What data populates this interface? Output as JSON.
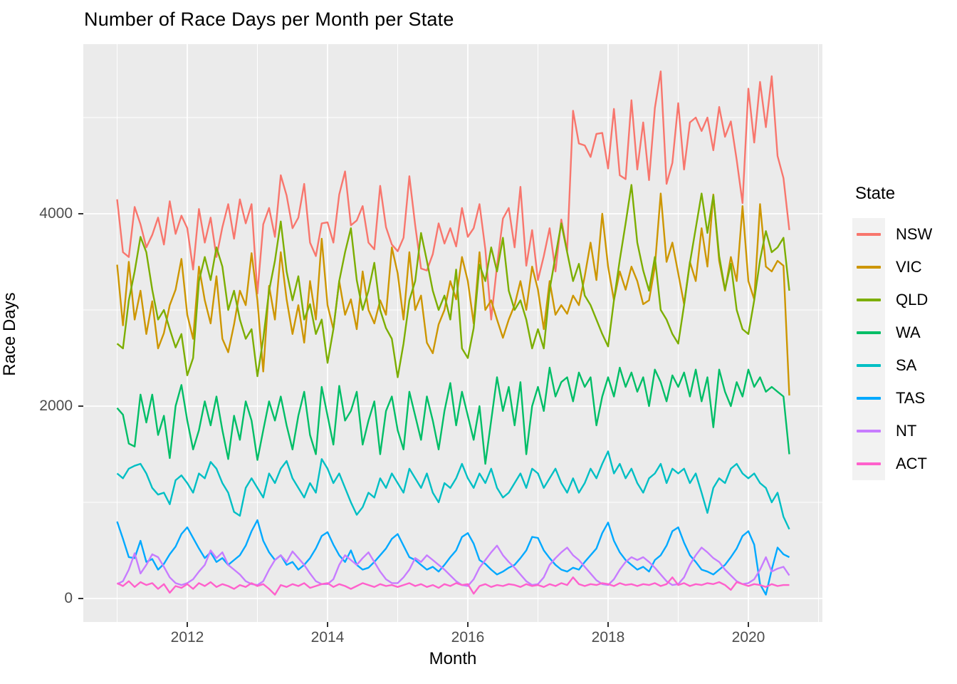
{
  "title": "Number of Race Days per Month per State",
  "colors": {
    "panel_bg": "#EBEBEB",
    "grid": "#FFFFFF",
    "legend_key_bg": "#F2F2F2",
    "tick_text": "#4D4D4D",
    "tick_mark": "#333333"
  },
  "legend": {
    "title": "State",
    "items": [
      {
        "label": "NSW",
        "color": "#F8766D"
      },
      {
        "label": "VIC",
        "color": "#CD9600"
      },
      {
        "label": "QLD",
        "color": "#7CAE00"
      },
      {
        "label": "WA",
        "color": "#00BE67"
      },
      {
        "label": "SA",
        "color": "#00BFC4"
      },
      {
        "label": "TAS",
        "color": "#00A9FF"
      },
      {
        "label": "NT",
        "color": "#C77CFF"
      },
      {
        "label": "ACT",
        "color": "#FF61CC"
      }
    ]
  },
  "chart_data": {
    "type": "line",
    "title": "Number of Race Days per Month per State",
    "xlabel": "Month",
    "ylabel": "Race Days",
    "x_start_year": 2011.0,
    "x_step_years": 0.0833333,
    "n_points": 116,
    "x_end_label": "Aug 2020",
    "ylim": [
      0,
      5480
    ],
    "x_major_ticks": [
      {
        "value": 2012,
        "label": "2012"
      },
      {
        "value": 2014,
        "label": "2014"
      },
      {
        "value": 2016,
        "label": "2016"
      },
      {
        "value": 2018,
        "label": "2018"
      },
      {
        "value": 2020,
        "label": "2020"
      }
    ],
    "x_minor_ticks": [
      2011,
      2013,
      2015,
      2017,
      2019,
      2021
    ],
    "y_major_ticks": [
      {
        "value": 0,
        "label": "0"
      },
      {
        "value": 2000,
        "label": "2000"
      },
      {
        "value": 4000,
        "label": "4000"
      }
    ],
    "y_minor_ticks": [
      1000,
      3000,
      5000
    ],
    "grid": true,
    "legend_position": "right",
    "series": [
      {
        "name": "NSW",
        "color": "#F8766D",
        "values": [
          4150,
          3600,
          3550,
          4070,
          3890,
          3650,
          3780,
          3960,
          3680,
          4130,
          3790,
          3980,
          3850,
          3420,
          4050,
          3700,
          3960,
          3550,
          3860,
          4100,
          3740,
          4150,
          3900,
          4100,
          3170,
          3890,
          4060,
          3760,
          4400,
          4190,
          3850,
          3960,
          4310,
          3700,
          3560,
          3900,
          3910,
          3700,
          4200,
          4440,
          3880,
          3930,
          4080,
          3700,
          3630,
          4290,
          3860,
          3680,
          3610,
          3750,
          4390,
          3880,
          3430,
          3410,
          3580,
          3900,
          3690,
          3850,
          3660,
          4060,
          3760,
          3850,
          4100,
          3630,
          2900,
          3460,
          3950,
          4060,
          3650,
          4280,
          3460,
          3830,
          3310,
          3560,
          3850,
          3400,
          3940,
          3610,
          5070,
          4730,
          4710,
          4590,
          4830,
          4840,
          4470,
          5090,
          4400,
          4360,
          5180,
          4460,
          4950,
          4350,
          5100,
          5480,
          4310,
          4530,
          5150,
          4460,
          4950,
          5000,
          4860,
          5000,
          4660,
          5110,
          4800,
          4960,
          4560,
          4110,
          5300,
          4740,
          5370,
          4900,
          5430,
          4600,
          4370,
          3830
        ]
      },
      {
        "name": "VIC",
        "color": "#CD9600",
        "values": [
          3470,
          2840,
          3500,
          2900,
          3200,
          2750,
          3090,
          2600,
          2760,
          3050,
          3210,
          3530,
          2950,
          2700,
          3450,
          3100,
          2860,
          3350,
          2700,
          2560,
          2850,
          3200,
          3050,
          3590,
          3100,
          2360,
          3250,
          2900,
          3600,
          3110,
          2750,
          3050,
          2660,
          3300,
          2900,
          3740,
          3050,
          2800,
          3300,
          2950,
          3110,
          2800,
          3400,
          3000,
          2860,
          3100,
          2950,
          3650,
          3380,
          2900,
          3600,
          3000,
          3150,
          2660,
          2550,
          2850,
          3000,
          3300,
          3110,
          3550,
          3300,
          2860,
          3600,
          3000,
          3100,
          2900,
          2710,
          2900,
          3050,
          3300,
          3000,
          3450,
          3210,
          2800,
          3300,
          2950,
          3050,
          2960,
          3150,
          3050,
          3350,
          3700,
          3310,
          4000,
          3450,
          3100,
          3400,
          3210,
          3450,
          3300,
          3060,
          3100,
          3450,
          4210,
          3500,
          3700,
          3380,
          3060,
          3500,
          3300,
          3850,
          3450,
          4200,
          3510,
          3200,
          3550,
          3300,
          4080,
          3300,
          3110,
          4100,
          3450,
          3400,
          3510,
          3460,
          2110
        ]
      },
      {
        "name": "QLD",
        "color": "#7CAE00",
        "values": [
          2650,
          2600,
          3100,
          3400,
          3760,
          3600,
          3210,
          2900,
          3000,
          2800,
          2610,
          2750,
          2320,
          2500,
          3300,
          3550,
          3310,
          3650,
          3450,
          3000,
          3200,
          2900,
          2700,
          2800,
          2310,
          2700,
          3200,
          3510,
          3920,
          3400,
          3100,
          3350,
          2900,
          3060,
          2750,
          2900,
          2450,
          2800,
          3300,
          3600,
          3850,
          3310,
          3000,
          3200,
          3490,
          3000,
          2810,
          2700,
          2300,
          2650,
          3100,
          3300,
          3800,
          3510,
          3200,
          3000,
          3150,
          2900,
          3420,
          2600,
          2500,
          2810,
          3470,
          3300,
          3650,
          3400,
          3750,
          3200,
          3000,
          3100,
          2900,
          2600,
          2800,
          2600,
          3210,
          3560,
          3900,
          3600,
          3300,
          3480,
          3150,
          3050,
          2900,
          2750,
          2620,
          3100,
          3520,
          3900,
          4300,
          3700,
          3410,
          3200,
          3550,
          3000,
          2900,
          2750,
          2650,
          3050,
          3490,
          3850,
          4210,
          3800,
          4190,
          3560,
          3210,
          3480,
          3000,
          2800,
          2750,
          3100,
          3520,
          3820,
          3600,
          3650,
          3750,
          3200
        ]
      },
      {
        "name": "WA",
        "color": "#00BE67",
        "values": [
          1980,
          1910,
          1610,
          1580,
          2120,
          1830,
          2120,
          1700,
          1900,
          1460,
          2000,
          2220,
          1850,
          1550,
          1750,
          2050,
          1800,
          2100,
          1750,
          1450,
          1900,
          1650,
          2050,
          1850,
          1440,
          1750,
          2050,
          1850,
          2100,
          1800,
          1550,
          1900,
          2150,
          1700,
          1500,
          2200,
          1900,
          1600,
          2210,
          1850,
          1950,
          2150,
          1600,
          1850,
          2050,
          1500,
          1950,
          2100,
          1750,
          1550,
          2150,
          1900,
          1650,
          2100,
          1850,
          1550,
          1950,
          2240,
          1800,
          2150,
          1900,
          1650,
          2000,
          1400,
          1850,
          2300,
          1950,
          2200,
          1800,
          2250,
          1500,
          2000,
          2200,
          1950,
          2400,
          2100,
          2250,
          2300,
          2050,
          2350,
          2200,
          2300,
          1800,
          2100,
          2300,
          2100,
          2400,
          2200,
          2350,
          2150,
          2300,
          2000,
          2380,
          2250,
          2050,
          2320,
          2200,
          2350,
          2100,
          2380,
          2050,
          2300,
          1780,
          2380,
          2150,
          2000,
          2250,
          2100,
          2380,
          2200,
          2300,
          2150,
          2200,
          2150,
          2100,
          1500
        ]
      },
      {
        "name": "SA",
        "color": "#00BFC4",
        "values": [
          1300,
          1250,
          1350,
          1380,
          1400,
          1300,
          1150,
          1080,
          1100,
          980,
          1230,
          1280,
          1200,
          1100,
          1300,
          1250,
          1420,
          1350,
          1200,
          1100,
          900,
          860,
          1150,
          1250,
          1150,
          1050,
          1300,
          1200,
          1350,
          1430,
          1250,
          1150,
          1050,
          1200,
          1100,
          1450,
          1350,
          1200,
          1300,
          1150,
          1000,
          870,
          950,
          1100,
          1050,
          1250,
          1150,
          1300,
          1200,
          1100,
          1350,
          1250,
          1150,
          1300,
          1100,
          1000,
          1200,
          1150,
          1250,
          1400,
          1250,
          1150,
          1300,
          1200,
          1350,
          1150,
          1050,
          1100,
          1200,
          1300,
          1150,
          1350,
          1300,
          1150,
          1250,
          1350,
          1200,
          1100,
          1250,
          1100,
          1200,
          1350,
          1250,
          1400,
          1530,
          1300,
          1400,
          1250,
          1350,
          1200,
          1100,
          1250,
          1300,
          1400,
          1200,
          1350,
          1300,
          1350,
          1200,
          1300,
          1100,
          890,
          1150,
          1250,
          1200,
          1350,
          1400,
          1300,
          1250,
          1300,
          1200,
          1150,
          1000,
          1100,
          850,
          720
        ]
      },
      {
        "name": "TAS",
        "color": "#00A9FF",
        "values": [
          800,
          620,
          430,
          420,
          600,
          380,
          410,
          300,
          360,
          460,
          540,
          670,
          740,
          630,
          520,
          420,
          480,
          380,
          420,
          350,
          400,
          450,
          550,
          700,
          815,
          600,
          480,
          400,
          450,
          350,
          380,
          300,
          350,
          420,
          520,
          650,
          690,
          560,
          450,
          380,
          500,
          350,
          300,
          320,
          380,
          450,
          520,
          620,
          670,
          550,
          430,
          400,
          350,
          300,
          330,
          280,
          350,
          430,
          500,
          640,
          680,
          570,
          400,
          360,
          300,
          250,
          280,
          320,
          350,
          420,
          500,
          640,
          630,
          500,
          420,
          350,
          300,
          280,
          320,
          300,
          380,
          450,
          520,
          680,
          790,
          600,
          480,
          400,
          350,
          300,
          330,
          280,
          400,
          450,
          550,
          700,
          740,
          580,
          450,
          380,
          300,
          280,
          250,
          300,
          350,
          430,
          520,
          650,
          700,
          560,
          150,
          40,
          300,
          530,
          460,
          430
        ]
      },
      {
        "name": "NT",
        "color": "#C77CFF",
        "values": [
          150,
          180,
          300,
          470,
          260,
          350,
          460,
          430,
          330,
          220,
          160,
          140,
          160,
          200,
          280,
          350,
          500,
          420,
          480,
          350,
          300,
          250,
          180,
          150,
          140,
          180,
          300,
          400,
          450,
          380,
          490,
          420,
          350,
          260,
          180,
          150,
          150,
          200,
          350,
          450,
          400,
          350,
          420,
          480,
          380,
          280,
          200,
          160,
          160,
          220,
          300,
          420,
          380,
          450,
          400,
          350,
          300,
          240,
          180,
          140,
          130,
          200,
          320,
          400,
          480,
          550,
          450,
          380,
          320,
          250,
          180,
          140,
          150,
          220,
          350,
          420,
          480,
          530,
          450,
          400,
          330,
          260,
          190,
          150,
          140,
          200,
          300,
          380,
          430,
          400,
          430,
          380,
          320,
          250,
          180,
          140,
          150,
          220,
          350,
          450,
          530,
          480,
          420,
          380,
          300,
          240,
          180,
          150,
          160,
          200,
          300,
          430,
          280,
          310,
          330,
          240
        ]
      },
      {
        "name": "ACT",
        "color": "#FF61CC",
        "values": [
          160,
          130,
          180,
          120,
          170,
          140,
          160,
          100,
          150,
          60,
          130,
          110,
          150,
          100,
          160,
          130,
          170,
          120,
          150,
          130,
          100,
          140,
          120,
          160,
          130,
          150,
          100,
          40,
          140,
          120,
          150,
          130,
          160,
          110,
          130,
          150,
          160,
          120,
          150,
          130,
          100,
          130,
          160,
          140,
          120,
          150,
          130,
          140,
          120,
          140,
          160,
          130,
          150,
          120,
          140,
          110,
          150,
          130,
          160,
          140,
          150,
          50,
          130,
          150,
          120,
          140,
          130,
          150,
          140,
          120,
          150,
          130,
          140,
          120,
          150,
          130,
          160,
          140,
          220,
          150,
          130,
          150,
          140,
          160,
          150,
          130,
          160,
          140,
          150,
          130,
          150,
          140,
          160,
          130,
          150,
          220,
          140,
          160,
          130,
          150,
          140,
          160,
          150,
          170,
          140,
          90,
          170,
          150,
          130,
          150,
          140,
          120,
          150,
          130,
          140,
          140
        ]
      }
    ]
  }
}
